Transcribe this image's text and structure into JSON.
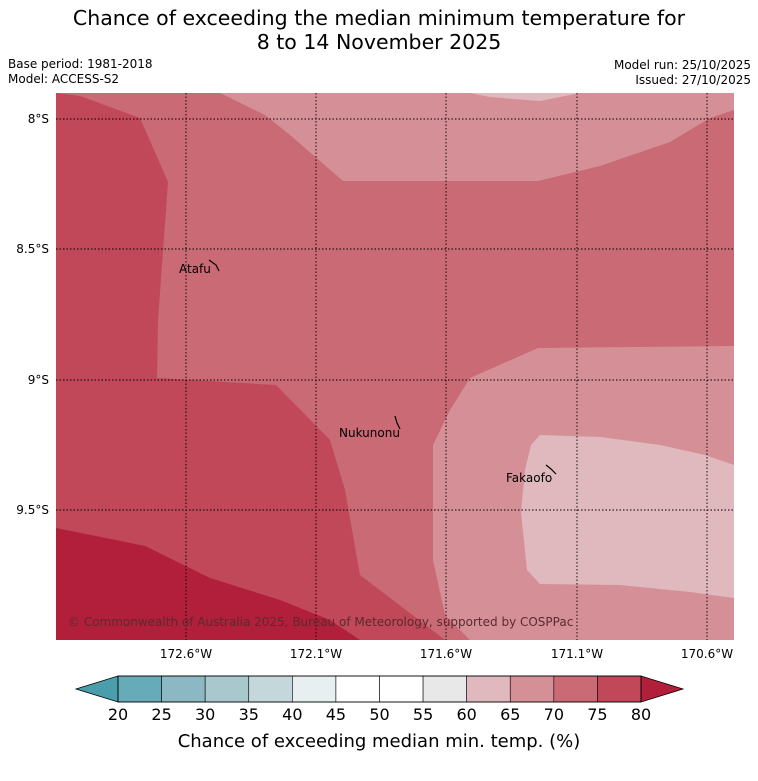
{
  "title": {
    "line1": "Chance of exceeding the median minimum temperature for",
    "line2": "8 to 14 November 2025"
  },
  "meta": {
    "base_period": "Base period: 1981-2018",
    "model": "Model: ACCESS-S2",
    "model_run": "Model run: 25/10/2025",
    "issued": "Issued: 27/10/2025"
  },
  "map": {
    "lat_labels": [
      "8°S",
      "8.5°S",
      "9°S",
      "9.5°S"
    ],
    "lon_labels": [
      "172.6°W",
      "172.1°W",
      "171.6°W",
      "171.1°W",
      "170.6°W"
    ],
    "places": [
      "Atafu",
      "Nukunonu",
      "Fakaofo"
    ],
    "credit": "© Commonwealth of Australia 2025, Bureau of Meteorology, supported by COSPPac",
    "zone_colors": {
      "p80plus": "#b21f3b",
      "p75_80": "#c04858",
      "p70_75": "#c96a75",
      "p65_70": "#d59097",
      "p60_65": "#dfb9be"
    }
  },
  "colorbar": {
    "ticks": [
      "20",
      "25",
      "30",
      "35",
      "40",
      "45",
      "50",
      "55",
      "60",
      "65",
      "70",
      "75",
      "80"
    ],
    "colors": [
      "#68abb8",
      "#8bb8c2",
      "#a8c8cd",
      "#c4d8dc",
      "#e8eff0",
      "#ffffff",
      "#ffffff",
      "#e8e8e8",
      "#dfb9be",
      "#d59097",
      "#c96a75",
      "#c04858"
    ],
    "under_color": "#4a9dab",
    "over_color": "#b21f3b",
    "label": "Chance of exceeding median min. temp. (%)"
  }
}
